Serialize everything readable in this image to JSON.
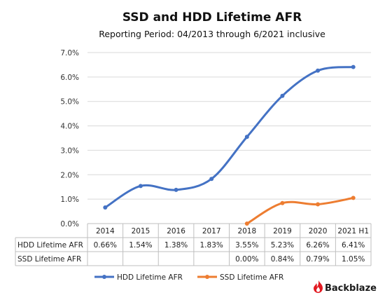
{
  "chart_data": {
    "type": "line",
    "title": "SSD and HDD Lifetime AFR",
    "subtitle": "Reporting Period: 04/2013 through 6/2021 inclusive",
    "categories": [
      "2014",
      "2015",
      "2016",
      "2017",
      "2018",
      "2019",
      "2020",
      "2021 H1"
    ],
    "ylim": [
      0,
      7
    ],
    "yticks": [
      "0.0%",
      "1.0%",
      "2.0%",
      "3.0%",
      "4.0%",
      "5.0%",
      "6.0%",
      "7.0%"
    ],
    "grid": true,
    "legend_position": "bottom",
    "series": [
      {
        "name": "HDD Lifetime AFR",
        "color": "#4472C4",
        "values": [
          0.66,
          1.54,
          1.38,
          1.83,
          3.55,
          5.23,
          6.26,
          6.41
        ],
        "labels": [
          "0.66%",
          "1.54%",
          "1.38%",
          "1.83%",
          "3.55%",
          "5.23%",
          "6.26%",
          "6.41%"
        ]
      },
      {
        "name": "SSD Lifetime AFR",
        "color": "#ED7D31",
        "values": [
          null,
          null,
          null,
          null,
          0.0,
          0.84,
          0.79,
          1.05
        ],
        "labels": [
          "",
          "",
          "",
          "",
          "0.00%",
          "0.84%",
          "0.79%",
          "1.05%"
        ]
      }
    ]
  },
  "brand": {
    "name": "Backblaze",
    "logo_icon": "flame-icon",
    "logo_color": "#E21A22"
  }
}
